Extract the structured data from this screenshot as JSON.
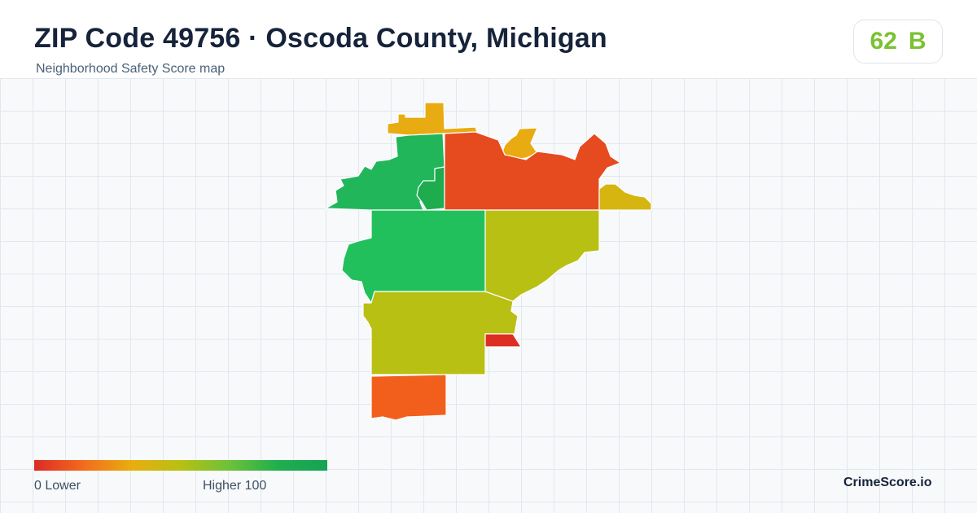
{
  "header": {
    "title": "ZIP Code 49756 · Oscoda County, Michigan",
    "subtitle": "Neighborhood Safety Score map"
  },
  "score": {
    "value": "62",
    "grade": "B",
    "color": "#7ac231"
  },
  "map": {
    "regions": [
      {
        "id": "top-center-strip",
        "color": "#e9ab12"
      },
      {
        "id": "top-mid-blob",
        "color": "#e9ab12"
      },
      {
        "id": "northwest",
        "color": "#22b65b"
      },
      {
        "id": "northwest-inner",
        "color": "#1eac4f"
      },
      {
        "id": "north-center",
        "color": "#e64a1f"
      },
      {
        "id": "northeast-tip",
        "color": "#d6b510"
      },
      {
        "id": "center-west",
        "color": "#22c05c"
      },
      {
        "id": "center-east",
        "color": "#b8c014"
      },
      {
        "id": "south-center",
        "color": "#b8c014"
      },
      {
        "id": "small-south-east",
        "color": "#dc2f22"
      },
      {
        "id": "south",
        "color": "#f25f1c"
      }
    ]
  },
  "legend": {
    "low_label": "0  Lower",
    "high_label": "Higher  100",
    "gradient_colors": [
      "#dc2a25",
      "#f26b1d",
      "#e9ad10",
      "#b8c014",
      "#6cc13a",
      "#15a354"
    ]
  },
  "brand": "CrimeScore.io"
}
